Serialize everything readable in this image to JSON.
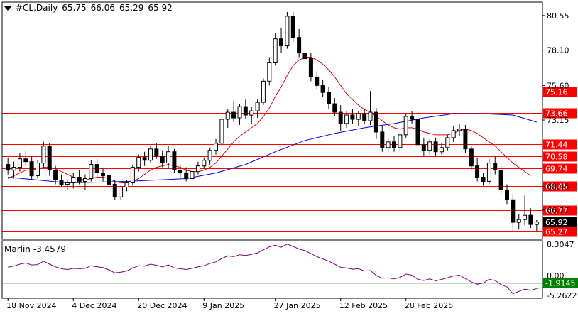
{
  "header": {
    "symbol": "#CL,Daily",
    "open": "65.75",
    "high": "66.06",
    "low": "65.29",
    "close": "65.92"
  },
  "indicator": {
    "name": "Marlin",
    "value": "-3.4579",
    "scale": [
      "8.3047",
      "0.00",
      "-5.2622"
    ],
    "current_label": "-1.9145",
    "current_value": -1.9145,
    "color": "#800080"
  },
  "price_scale": [
    "80.55",
    "78.10",
    "75.60",
    "73.15",
    "68.45",
    "66.77"
  ],
  "levels": [
    {
      "value": 75.16,
      "label": "75.16"
    },
    {
      "value": 73.66,
      "label": "73.66"
    },
    {
      "value": 71.44,
      "label": "71.44"
    },
    {
      "value": 70.58,
      "label": "70.58"
    },
    {
      "value": 69.74,
      "label": "69.74"
    },
    {
      "value": 68.45,
      "label": "68.45"
    },
    {
      "value": 66.77,
      "label": "66.77"
    },
    {
      "value": 65.27,
      "label": "65.27"
    }
  ],
  "current_price": {
    "value": 65.92,
    "label": "65.92"
  },
  "date_labels": [
    "18 Nov 2024",
    "4 Dec 2024",
    "20 Dec 2024",
    "9 Jan 2025",
    "27 Jan 2025",
    "12 Feb 2025",
    "28 Feb 2025"
  ],
  "colors": {
    "level": "#ff0000",
    "ma_fast": "#e00000",
    "ma_slow": "#0000dd",
    "bull": "#ffffff",
    "bear": "#000000",
    "grid": "#000000"
  },
  "chart_data": {
    "type": "candlestick",
    "ylim": [
      64.7,
      81.5
    ],
    "candles": [
      [
        70.0,
        70.5,
        69.3,
        69.6
      ],
      [
        69.6,
        70.2,
        69.0,
        69.8
      ],
      [
        69.8,
        70.8,
        69.5,
        70.4
      ],
      [
        70.4,
        71.0,
        69.9,
        70.2
      ],
      [
        70.2,
        70.6,
        68.9,
        69.2
      ],
      [
        69.2,
        70.3,
        69.0,
        70.1
      ],
      [
        70.1,
        71.6,
        69.8,
        71.3
      ],
      [
        71.3,
        71.5,
        69.2,
        69.6
      ],
      [
        69.6,
        69.9,
        68.6,
        68.9
      ],
      [
        68.9,
        69.3,
        68.4,
        68.6
      ],
      [
        68.6,
        68.9,
        68.2,
        68.7
      ],
      [
        68.7,
        69.4,
        68.3,
        69.1
      ],
      [
        69.1,
        69.6,
        68.6,
        68.8
      ],
      [
        68.8,
        69.3,
        68.2,
        69.0
      ],
      [
        69.0,
        70.3,
        68.8,
        70.0
      ],
      [
        70.0,
        70.4,
        69.1,
        69.4
      ],
      [
        69.4,
        69.7,
        68.8,
        69.2
      ],
      [
        69.2,
        69.4,
        68.4,
        68.6
      ],
      [
        68.6,
        68.9,
        67.5,
        67.7
      ],
      [
        67.7,
        68.5,
        67.5,
        68.4
      ],
      [
        68.4,
        68.9,
        68.1,
        68.7
      ],
      [
        68.7,
        70.0,
        68.5,
        69.8
      ],
      [
        69.8,
        70.7,
        69.5,
        70.5
      ],
      [
        70.5,
        70.9,
        69.9,
        70.3
      ],
      [
        70.3,
        71.3,
        70.1,
        71.1
      ],
      [
        71.1,
        71.5,
        70.4,
        70.6
      ],
      [
        70.6,
        71.0,
        69.8,
        70.1
      ],
      [
        70.1,
        71.3,
        69.7,
        70.9
      ],
      [
        70.9,
        71.1,
        69.4,
        69.6
      ],
      [
        69.6,
        70.0,
        69.1,
        69.4
      ],
      [
        69.4,
        69.8,
        68.8,
        69.0
      ],
      [
        69.0,
        69.8,
        68.8,
        69.5
      ],
      [
        69.5,
        70.2,
        69.3,
        69.9
      ],
      [
        69.9,
        70.5,
        69.7,
        70.3
      ],
      [
        70.3,
        71.2,
        70.0,
        71.0
      ],
      [
        71.0,
        71.8,
        70.7,
        71.5
      ],
      [
        71.5,
        73.4,
        71.3,
        73.2
      ],
      [
        73.2,
        73.9,
        72.6,
        73.7
      ],
      [
        73.7,
        74.5,
        73.0,
        73.3
      ],
      [
        73.3,
        74.3,
        72.8,
        74.1
      ],
      [
        74.1,
        74.6,
        73.2,
        73.5
      ],
      [
        73.5,
        74.1,
        72.9,
        73.8
      ],
      [
        73.8,
        74.6,
        73.3,
        74.4
      ],
      [
        74.4,
        76.1,
        74.2,
        75.9
      ],
      [
        75.9,
        77.6,
        75.6,
        77.2
      ],
      [
        77.2,
        79.3,
        77.0,
        78.9
      ],
      [
        78.9,
        79.7,
        77.9,
        78.4
      ],
      [
        78.4,
        80.8,
        78.2,
        80.5
      ],
      [
        80.5,
        80.8,
        78.7,
        79.0
      ],
      [
        79.0,
        79.6,
        77.6,
        77.9
      ],
      [
        77.9,
        78.6,
        76.9,
        77.5
      ],
      [
        77.5,
        77.9,
        75.9,
        76.2
      ],
      [
        76.2,
        76.6,
        75.3,
        75.6
      ],
      [
        75.6,
        76.0,
        74.8,
        75.1
      ],
      [
        75.1,
        75.5,
        73.9,
        74.3
      ],
      [
        74.3,
        74.7,
        73.4,
        73.7
      ],
      [
        73.7,
        74.2,
        72.4,
        72.9
      ],
      [
        72.9,
        73.8,
        72.6,
        73.5
      ],
      [
        73.5,
        73.9,
        72.9,
        73.2
      ],
      [
        73.2,
        73.8,
        72.7,
        73.6
      ],
      [
        73.6,
        73.9,
        72.9,
        73.1
      ],
      [
        73.1,
        75.2,
        72.8,
        73.7
      ],
      [
        73.7,
        74.0,
        71.8,
        72.3
      ],
      [
        72.3,
        72.7,
        70.9,
        71.2
      ],
      [
        71.2,
        71.9,
        70.8,
        71.6
      ],
      [
        71.6,
        72.0,
        70.9,
        71.2
      ],
      [
        71.2,
        72.3,
        70.9,
        72.1
      ],
      [
        72.1,
        73.6,
        71.9,
        73.4
      ],
      [
        73.4,
        73.8,
        72.9,
        73.2
      ],
      [
        73.2,
        73.7,
        71.0,
        71.4
      ],
      [
        71.4,
        71.9,
        70.6,
        71.0
      ],
      [
        71.0,
        71.8,
        70.7,
        71.6
      ],
      [
        71.6,
        71.9,
        70.6,
        70.9
      ],
      [
        70.9,
        71.5,
        70.7,
        71.2
      ],
      [
        71.2,
        72.1,
        71.0,
        71.9
      ],
      [
        71.9,
        72.7,
        71.6,
        72.4
      ],
      [
        72.4,
        72.9,
        72.0,
        72.5
      ],
      [
        72.5,
        72.8,
        70.8,
        71.1
      ],
      [
        71.1,
        71.3,
        69.6,
        69.9
      ],
      [
        69.9,
        70.5,
        68.8,
        69.1
      ],
      [
        69.1,
        69.4,
        68.5,
        68.8
      ],
      [
        68.8,
        70.4,
        68.6,
        70.1
      ],
      [
        70.1,
        70.6,
        69.3,
        69.6
      ],
      [
        69.6,
        69.9,
        67.9,
        68.2
      ],
      [
        68.2,
        68.6,
        67.2,
        67.5
      ],
      [
        67.5,
        67.9,
        65.3,
        65.9
      ],
      [
        65.9,
        66.5,
        65.4,
        66.1
      ],
      [
        66.1,
        67.8,
        65.7,
        66.4
      ],
      [
        66.4,
        66.9,
        65.5,
        65.75
      ],
      [
        65.75,
        66.06,
        65.29,
        65.92
      ]
    ],
    "ma_fast": [
      69.0,
      69.2,
      69.4,
      69.6,
      69.6,
      69.7,
      69.8,
      69.8,
      69.7,
      69.5,
      69.3,
      69.1,
      69.0,
      68.9,
      69.0,
      69.1,
      69.1,
      69.0,
      68.8,
      68.7,
      68.7,
      68.8,
      69.0,
      69.3,
      69.6,
      69.8,
      69.9,
      70.0,
      69.9,
      69.8,
      69.6,
      69.5,
      69.5,
      69.6,
      69.8,
      70.1,
      70.6,
      71.1,
      71.6,
      72.0,
      72.3,
      72.6,
      72.9,
      73.4,
      74.0,
      74.8,
      75.5,
      76.3,
      77.0,
      77.4,
      77.6,
      77.6,
      77.4,
      77.1,
      76.7,
      76.2,
      75.6,
      75.0,
      74.6,
      74.2,
      73.9,
      73.7,
      73.4,
      73.1,
      72.8,
      72.6,
      72.5,
      72.6,
      72.6,
      72.5,
      72.3,
      72.2,
      72.1,
      72.1,
      72.1,
      72.2,
      72.4,
      72.5,
      72.4,
      72.2,
      71.9,
      71.6,
      71.3,
      70.9,
      70.5,
      70.1,
      69.8,
      69.5,
      69.2,
      69.0
    ],
    "ma_slow_x": [
      0,
      10,
      20,
      30,
      35,
      40,
      45,
      50,
      55,
      60,
      65,
      70,
      75,
      80,
      85,
      89
    ],
    "ma_slow": [
      69.1,
      68.7,
      68.8,
      69.0,
      69.4,
      70.0,
      70.9,
      71.7,
      72.2,
      72.6,
      72.9,
      73.3,
      73.6,
      73.6,
      73.5,
      73.0
    ],
    "ma_fast_end": 88,
    "ma_slow_end": 84,
    "indicator_values": [
      2.2,
      2.5,
      3.0,
      3.3,
      2.8,
      2.9,
      3.8,
      3.0,
      2.3,
      1.8,
      1.6,
      1.9,
      1.8,
      1.9,
      2.6,
      2.3,
      2.1,
      1.5,
      0.7,
      0.9,
      1.2,
      2.0,
      2.6,
      2.5,
      3.0,
      2.7,
      2.3,
      2.8,
      2.0,
      1.8,
      1.6,
      1.9,
      2.3,
      2.6,
      3.2,
      3.6,
      4.5,
      5.2,
      5.0,
      5.5,
      5.3,
      5.6,
      6.0,
      6.8,
      7.6,
      8.0,
      7.5,
      8.3,
      7.7,
      7.0,
      6.6,
      5.8,
      5.0,
      4.4,
      3.8,
      3.0,
      2.2,
      2.0,
      1.7,
      1.8,
      1.2,
      1.3,
      0.0,
      -0.7,
      -0.6,
      -0.9,
      -0.5,
      0.4,
      0.1,
      -1.0,
      -1.3,
      -0.9,
      -1.4,
      -1.0,
      -0.6,
      -0.1,
      0.1,
      -0.8,
      -1.7,
      -2.3,
      -2.0,
      -1.0,
      -1.3,
      -2.4,
      -3.0,
      -4.8,
      -4.2,
      -3.6,
      -3.9,
      -3.46
    ],
    "indicator_ylim": [
      -6.0,
      9.2
    ]
  }
}
